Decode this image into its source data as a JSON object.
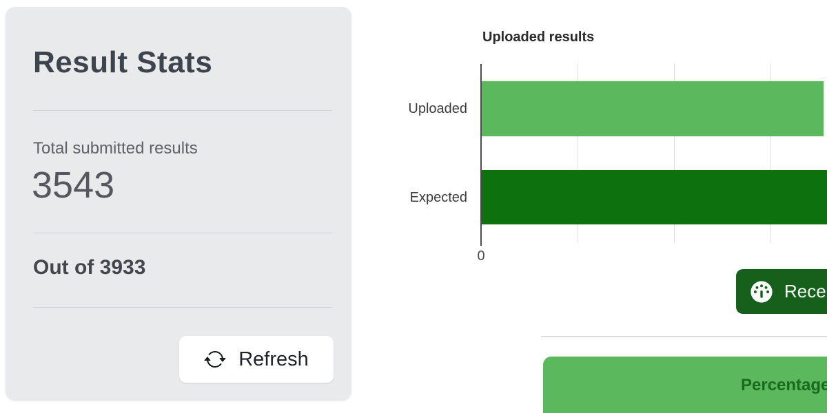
{
  "stats_card": {
    "title": "Result Stats",
    "total_label": "Total submitted results",
    "total_value": "3543",
    "out_of_text": "Out of 3933",
    "refresh_label": "Refresh"
  },
  "chart_data": {
    "type": "bar",
    "orientation": "horizontal",
    "title": "Uploaded results",
    "categories": [
      "Uploaded",
      "Expected"
    ],
    "values": [
      3543,
      3933
    ],
    "series_colors": [
      "#5cb85c",
      "#0d720d"
    ],
    "xlim": [
      0,
      4000
    ],
    "gridline_values": [
      1000,
      2000,
      3000
    ],
    "x_tick_labels": [
      "0"
    ],
    "grid": true,
    "legend_position": "none"
  },
  "buttons": {
    "recent_visible_label": "Rece"
  },
  "percentage_panel": {
    "visible_label": "Percentage"
  },
  "colors": {
    "light_green": "#5cb85c",
    "dark_green": "#0d720d",
    "button_green": "#17601c",
    "card_bg": "#e9eaec",
    "panel_text_green": "#186a1d"
  }
}
